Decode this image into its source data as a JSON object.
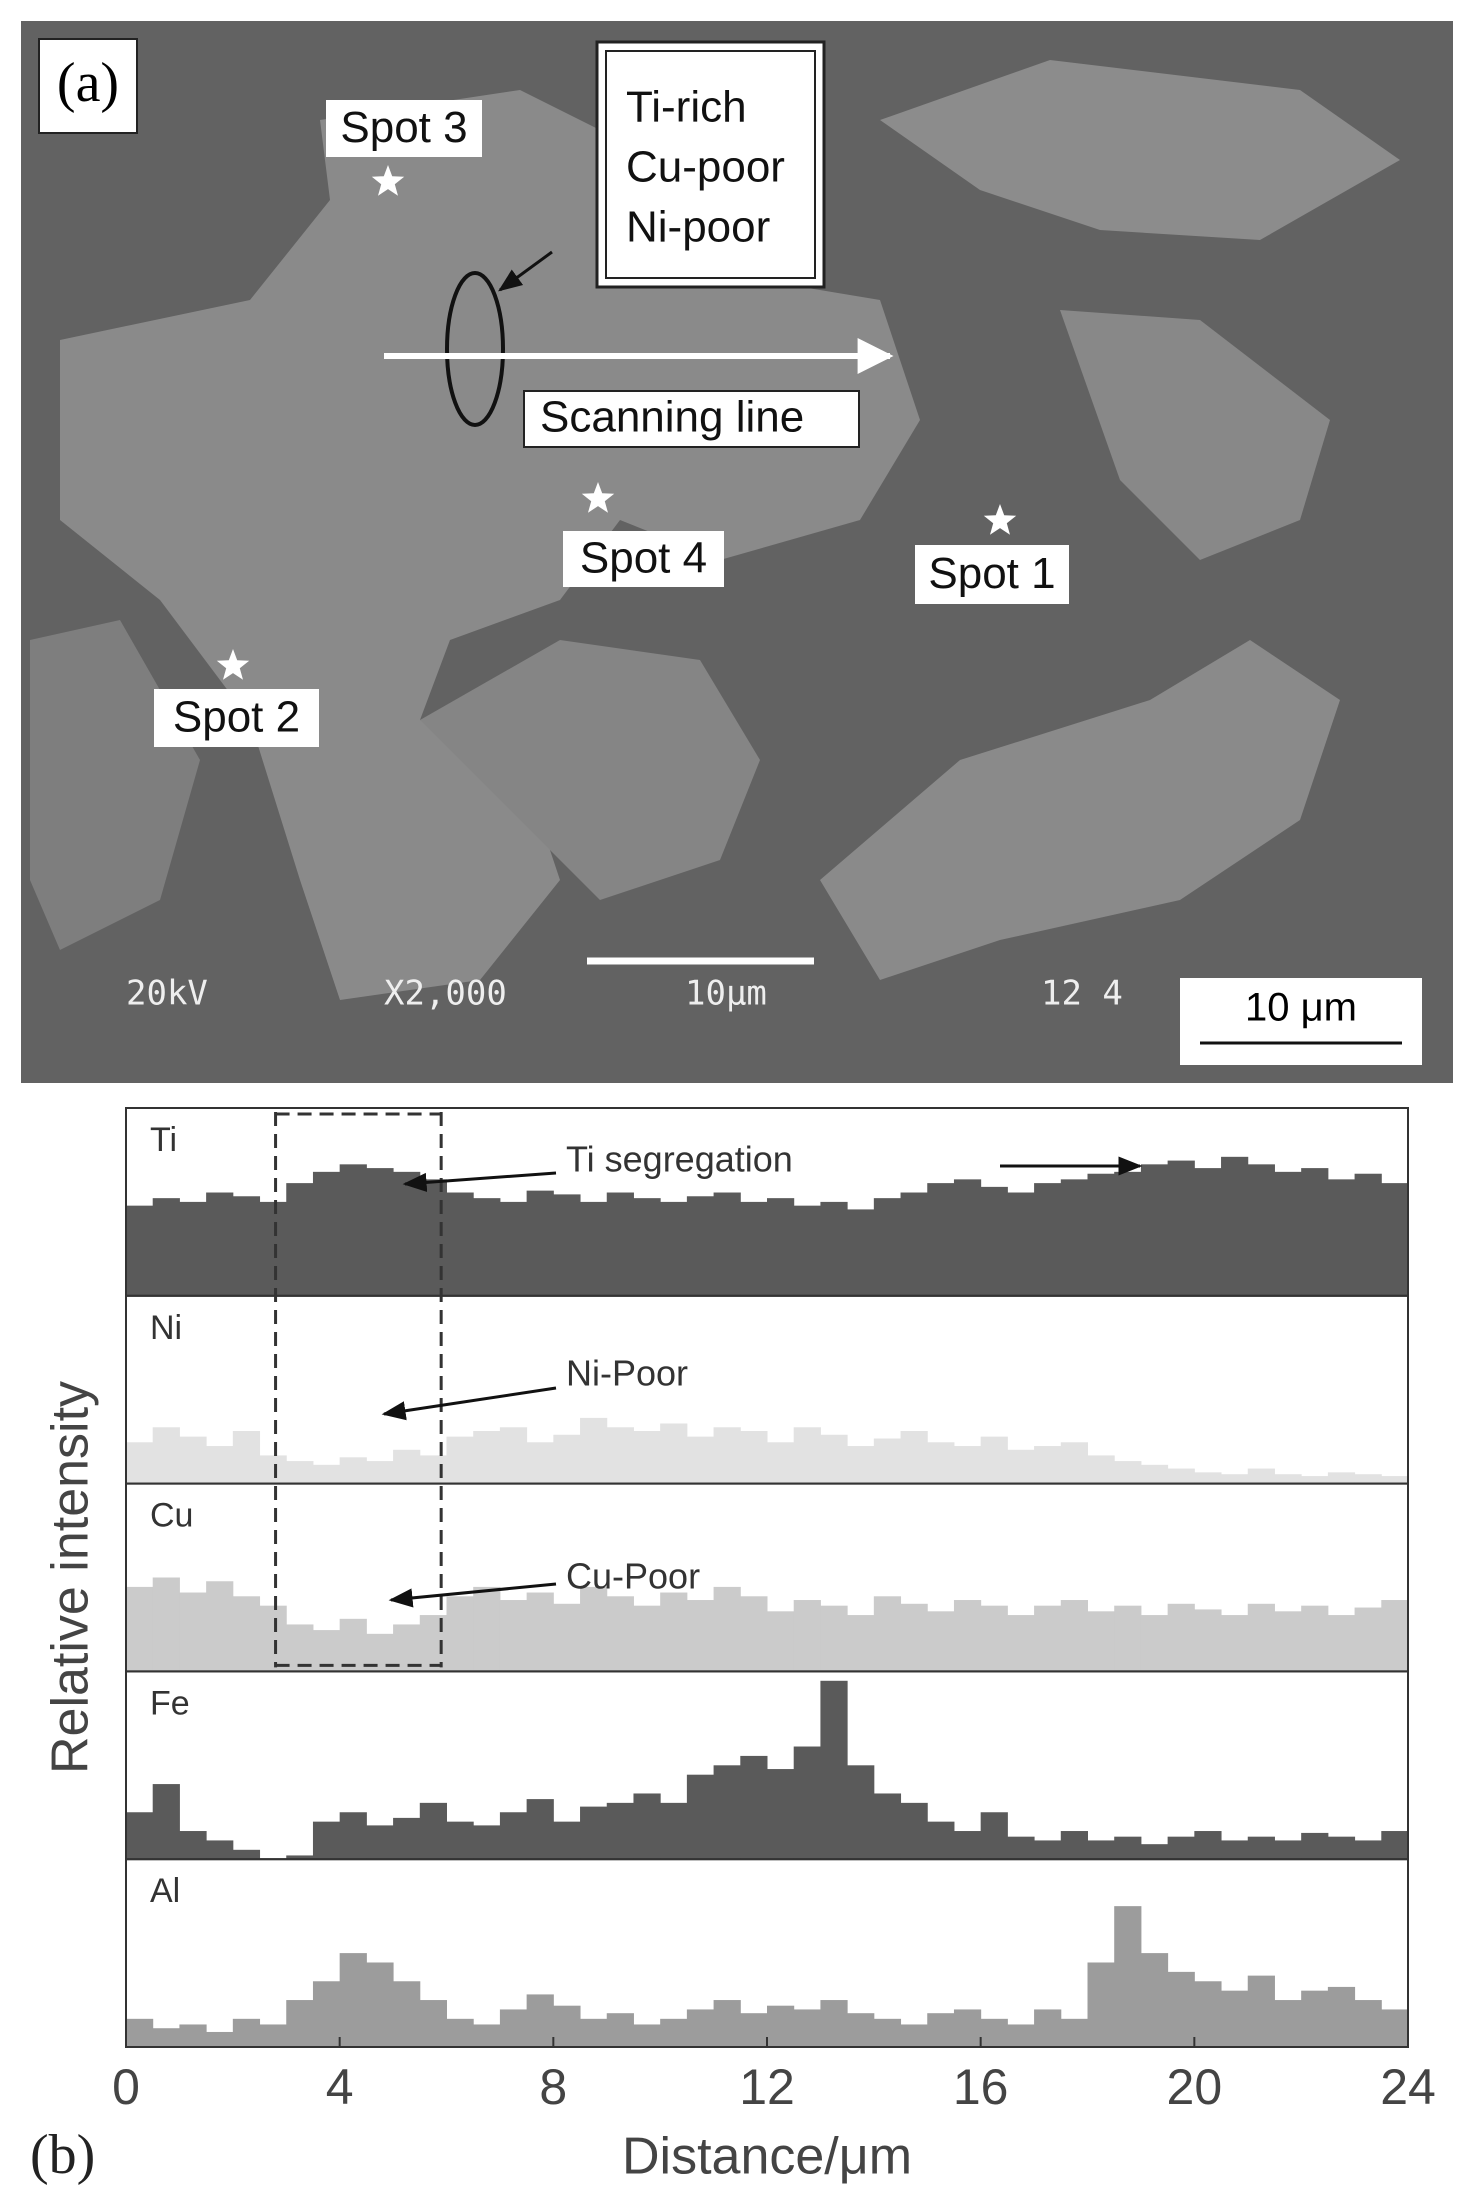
{
  "micrograph": {
    "panel_label": "(a)",
    "callout": [
      "Ti-rich",
      "Cu-poor",
      "Ni-poor"
    ],
    "scan_label": "Scanning line",
    "spots": [
      "Spot 3",
      "Spot 4",
      "Spot 1",
      "Spot 2"
    ],
    "info_bar": [
      "20kV",
      "X2,000",
      "10µm",
      "12 4"
    ],
    "scale_bar": "10 μm"
  },
  "chart_data": {
    "type": "bar",
    "panel_label": "(b)",
    "x_label": "Distance/μm",
    "y_label": "Relative intensity",
    "annotations": [
      "Ti segregation",
      "Ni-Poor",
      "Cu-Poor"
    ],
    "highlight_range": [
      2.8,
      5.9
    ],
    "xlim": [
      0,
      24
    ],
    "xticks": [
      0,
      4,
      8,
      12,
      16,
      20,
      24
    ],
    "ylim": [
      0,
      1
    ],
    "x": [
      0.25,
      0.75,
      1.25,
      1.75,
      2.25,
      2.75,
      3.25,
      3.75,
      4.25,
      4.75,
      5.25,
      5.75,
      6.25,
      6.75,
      7.25,
      7.75,
      8.25,
      8.75,
      9.25,
      9.75,
      10.25,
      10.75,
      11.25,
      11.75,
      12.25,
      12.75,
      13.25,
      13.75,
      14.25,
      14.75,
      15.25,
      15.75,
      16.25,
      16.75,
      17.25,
      17.75,
      18.25,
      18.75,
      19.25,
      19.75,
      20.25,
      20.75,
      21.25,
      21.75,
      22.25,
      22.75,
      23.25,
      23.75
    ],
    "series": [
      {
        "name": "Ti",
        "color": "#5a5a5a",
        "values": [
          0.48,
          0.52,
          0.5,
          0.55,
          0.53,
          0.5,
          0.6,
          0.66,
          0.7,
          0.68,
          0.66,
          0.62,
          0.55,
          0.52,
          0.5,
          0.56,
          0.54,
          0.5,
          0.55,
          0.52,
          0.5,
          0.53,
          0.55,
          0.5,
          0.52,
          0.48,
          0.5,
          0.46,
          0.52,
          0.55,
          0.6,
          0.62,
          0.58,
          0.55,
          0.6,
          0.62,
          0.65,
          0.66,
          0.7,
          0.72,
          0.68,
          0.74,
          0.7,
          0.66,
          0.68,
          0.62,
          0.65,
          0.6
        ]
      },
      {
        "name": "Ni",
        "color": "#e2e2e2",
        "values": [
          0.22,
          0.3,
          0.25,
          0.2,
          0.28,
          0.15,
          0.12,
          0.1,
          0.14,
          0.12,
          0.18,
          0.15,
          0.25,
          0.28,
          0.3,
          0.22,
          0.26,
          0.35,
          0.3,
          0.28,
          0.32,
          0.25,
          0.3,
          0.28,
          0.22,
          0.3,
          0.26,
          0.2,
          0.24,
          0.28,
          0.22,
          0.2,
          0.25,
          0.18,
          0.2,
          0.22,
          0.15,
          0.12,
          0.1,
          0.08,
          0.06,
          0.05,
          0.08,
          0.05,
          0.04,
          0.06,
          0.05,
          0.04
        ]
      },
      {
        "name": "Cu",
        "color": "#cbcbcb",
        "values": [
          0.45,
          0.5,
          0.42,
          0.48,
          0.4,
          0.35,
          0.25,
          0.22,
          0.28,
          0.2,
          0.25,
          0.3,
          0.4,
          0.45,
          0.38,
          0.42,
          0.36,
          0.45,
          0.4,
          0.35,
          0.42,
          0.38,
          0.45,
          0.4,
          0.32,
          0.38,
          0.35,
          0.3,
          0.4,
          0.36,
          0.32,
          0.38,
          0.35,
          0.3,
          0.35,
          0.38,
          0.32,
          0.35,
          0.3,
          0.36,
          0.33,
          0.3,
          0.36,
          0.32,
          0.35,
          0.3,
          0.34,
          0.38
        ]
      },
      {
        "name": "Fe",
        "color": "#5a5a5a",
        "values": [
          0.25,
          0.4,
          0.15,
          0.1,
          0.05,
          0.0,
          0.02,
          0.2,
          0.25,
          0.18,
          0.22,
          0.3,
          0.2,
          0.18,
          0.25,
          0.32,
          0.2,
          0.28,
          0.3,
          0.35,
          0.3,
          0.45,
          0.5,
          0.55,
          0.48,
          0.6,
          0.95,
          0.5,
          0.35,
          0.3,
          0.2,
          0.15,
          0.25,
          0.12,
          0.1,
          0.15,
          0.1,
          0.12,
          0.08,
          0.12,
          0.15,
          0.1,
          0.12,
          0.1,
          0.14,
          0.12,
          0.1,
          0.15
        ]
      },
      {
        "name": "Al",
        "color": "#9c9c9c",
        "values": [
          0.15,
          0.1,
          0.12,
          0.08,
          0.15,
          0.12,
          0.25,
          0.35,
          0.5,
          0.45,
          0.35,
          0.25,
          0.15,
          0.12,
          0.2,
          0.28,
          0.22,
          0.15,
          0.18,
          0.12,
          0.15,
          0.2,
          0.25,
          0.18,
          0.22,
          0.2,
          0.25,
          0.18,
          0.15,
          0.12,
          0.18,
          0.2,
          0.15,
          0.12,
          0.2,
          0.15,
          0.45,
          0.75,
          0.5,
          0.4,
          0.35,
          0.3,
          0.38,
          0.25,
          0.3,
          0.32,
          0.25,
          0.2
        ]
      }
    ]
  }
}
